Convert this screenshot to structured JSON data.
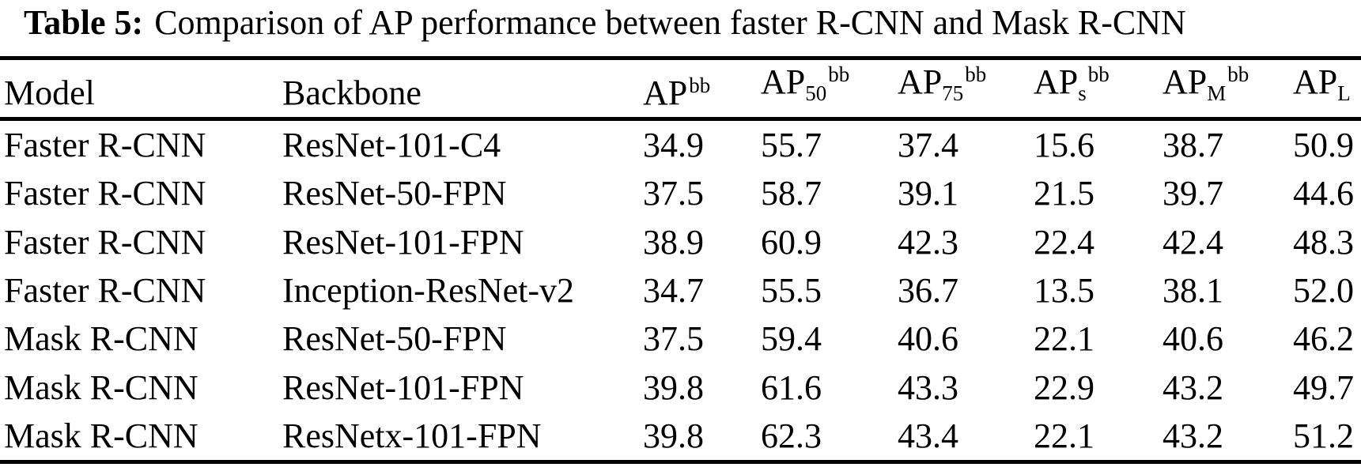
{
  "title": {
    "label": "Table 5:",
    "text": "Comparison of AP performance between faster R-CNN and Mask R-CNN"
  },
  "table": {
    "columns": [
      {
        "key": "model",
        "label": "Model"
      },
      {
        "key": "backbone",
        "label": "Backbone"
      },
      {
        "key": "ap",
        "base": "AP",
        "sub": "",
        "sup": "bb"
      },
      {
        "key": "ap50",
        "base": "AP",
        "sub": "50",
        "sup": "bb"
      },
      {
        "key": "ap75",
        "base": "AP",
        "sub": "75",
        "sup": "bb"
      },
      {
        "key": "aps",
        "base": "AP",
        "sub": "s",
        "sup": "bb"
      },
      {
        "key": "apm",
        "base": "AP",
        "sub": "M",
        "sup": "bb"
      },
      {
        "key": "apl",
        "base": "AP",
        "sub": "L",
        "sup": ""
      }
    ],
    "rows": [
      [
        "Faster R-CNN",
        "ResNet-101-C4",
        "34.9",
        "55.7",
        "37.4",
        "15.6",
        "38.7",
        "50.9"
      ],
      [
        "Faster R-CNN",
        "ResNet-50-FPN",
        "37.5",
        "58.7",
        "39.1",
        "21.5",
        "39.7",
        "44.6"
      ],
      [
        "Faster R-CNN",
        "ResNet-101-FPN",
        "38.9",
        "60.9",
        "42.3",
        "22.4",
        "42.4",
        "48.3"
      ],
      [
        "Faster R-CNN",
        "Inception-ResNet-v2",
        "34.7",
        "55.5",
        "36.7",
        "13.5",
        "38.1",
        "52.0"
      ],
      [
        "Mask R-CNN",
        "ResNet-50-FPN",
        "37.5",
        "59.4",
        "40.6",
        "22.1",
        "40.6",
        "46.2"
      ],
      [
        "Mask R-CNN",
        "ResNet-101-FPN",
        "39.8",
        "61.6",
        "43.3",
        "22.9",
        "43.2",
        "49.7"
      ],
      [
        "Mask R-CNN",
        "ResNetx-101-FPN",
        "39.8",
        "62.3",
        "43.4",
        "22.1",
        "43.2",
        "51.2"
      ]
    ]
  },
  "chart_data": {
    "type": "table",
    "title": "Table 5: Comparison of AP performance between faster R-CNN and Mask R-CNN",
    "columns": [
      "Model",
      "Backbone",
      "AP^bb",
      "AP_50^bb",
      "AP_75^bb",
      "AP_s^bb",
      "AP_M^bb",
      "AP_L"
    ],
    "rows": [
      [
        "Faster R-CNN",
        "ResNet-101-C4",
        34.9,
        55.7,
        37.4,
        15.6,
        38.7,
        50.9
      ],
      [
        "Faster R-CNN",
        "ResNet-50-FPN",
        37.5,
        58.7,
        39.1,
        21.5,
        39.7,
        44.6
      ],
      [
        "Faster R-CNN",
        "ResNet-101-FPN",
        38.9,
        60.9,
        42.3,
        22.4,
        42.4,
        48.3
      ],
      [
        "Faster R-CNN",
        "Inception-ResNet-v2",
        34.7,
        55.5,
        36.7,
        13.5,
        38.1,
        52.0
      ],
      [
        "Mask R-CNN",
        "ResNet-50-FPN",
        37.5,
        59.4,
        40.6,
        22.1,
        40.6,
        46.2
      ],
      [
        "Mask R-CNN",
        "ResNet-101-FPN",
        39.8,
        61.6,
        43.3,
        22.9,
        43.2,
        49.7
      ],
      [
        "Mask R-CNN",
        "ResNetx-101-FPN",
        39.8,
        62.3,
        43.4,
        22.1,
        43.2,
        51.2
      ]
    ]
  },
  "colors": {
    "text": "#000000",
    "background": "#ffffff",
    "rule": "#000000"
  }
}
